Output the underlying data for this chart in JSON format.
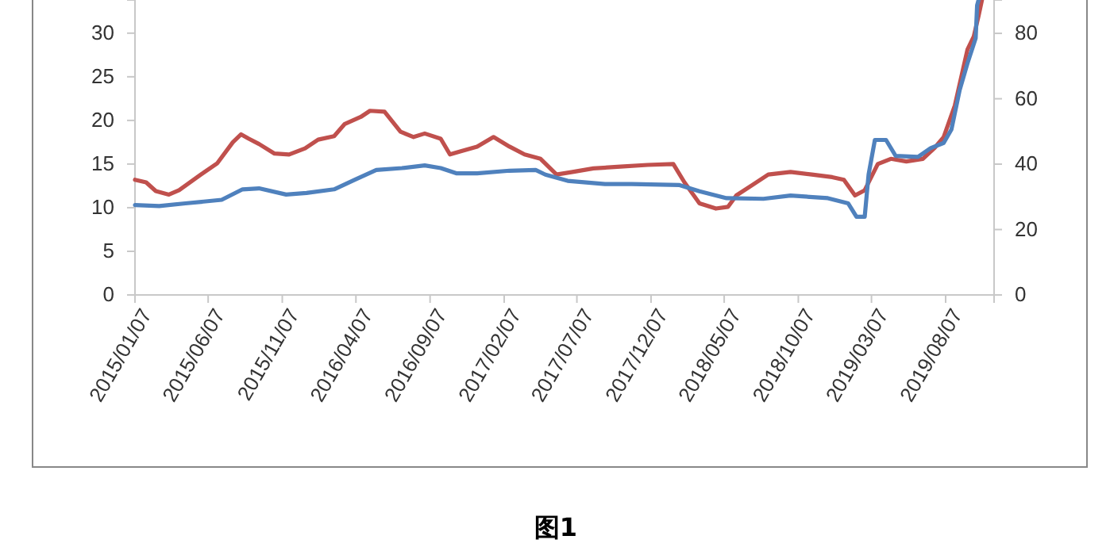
{
  "chart_data": {
    "type": "line",
    "title": "图1",
    "grid": false,
    "marker": "none",
    "line_style": "solid",
    "xlim": [
      "2015-01-07",
      "2019-11-15"
    ],
    "xticks": [
      {
        "value": "2015-01-07",
        "label": "2015/01/07"
      },
      {
        "value": "2015-06-07",
        "label": "2015/06/07"
      },
      {
        "value": "2015-11-07",
        "label": "2015/11/07"
      },
      {
        "value": "2016-04-07",
        "label": "2016/04/07"
      },
      {
        "value": "2016-09-07",
        "label": "2016/09/07"
      },
      {
        "value": "2017-02-07",
        "label": "2017/02/07"
      },
      {
        "value": "2017-07-07",
        "label": "2017/07/07"
      },
      {
        "value": "2017-12-07",
        "label": "2017/12/07"
      },
      {
        "value": "2018-05-07",
        "label": "2018/05/07"
      },
      {
        "value": "2018-10-07",
        "label": "2018/10/07"
      },
      {
        "value": "2019-03-07",
        "label": "2019/03/07"
      },
      {
        "value": "2019-08-07",
        "label": "2019/08/07"
      }
    ],
    "ylim": [
      0,
      33.8
    ],
    "yticks": [
      0,
      5,
      10,
      15,
      20,
      25,
      30
    ],
    "y2lim": [
      0,
      90.2
    ],
    "y2ticks": [
      0,
      20,
      40,
      60,
      80
    ],
    "series": [
      {
        "color": "#c0504d",
        "x": [
          "2015-01-07",
          "2015-01-30",
          "2015-02-19",
          "2015-03-18",
          "2015-04-08",
          "2015-05-23",
          "2015-06-26",
          "2015-07-28",
          "2015-08-14",
          "2015-08-30",
          "2015-09-20",
          "2015-10-22",
          "2015-11-21",
          "2015-12-24",
          "2016-01-20",
          "2016-02-22",
          "2016-03-15",
          "2016-04-17",
          "2016-05-06",
          "2016-06-05",
          "2016-07-08",
          "2016-08-04",
          "2016-08-27",
          "2016-09-29",
          "2016-10-18",
          "2016-11-11",
          "2016-12-13",
          "2017-01-16",
          "2017-02-18",
          "2017-03-21",
          "2017-04-23",
          "2017-05-26",
          "2017-06-28",
          "2017-08-10",
          "2017-10-05",
          "2017-11-30",
          "2018-01-22",
          "2018-02-14",
          "2018-03-17",
          "2018-04-20",
          "2018-05-15",
          "2018-06-01",
          "2018-07-04",
          "2018-08-06",
          "2018-09-21",
          "2018-11-04",
          "2018-12-16",
          "2019-01-09",
          "2019-02-01",
          "2019-02-21",
          "2019-03-20",
          "2019-04-16",
          "2019-05-18",
          "2019-06-21",
          "2019-07-16",
          "2019-08-03",
          "2019-08-26",
          "2019-09-12",
          "2019-09-21",
          "2019-10-04",
          "2019-10-14",
          "2019-10-21"
        ],
        "values": [
          13.2,
          12.9,
          11.9,
          11.5,
          12,
          13.8,
          15.1,
          17.5,
          18.4,
          17.9,
          17.3,
          16.2,
          16.1,
          16.8,
          17.8,
          18.2,
          19.6,
          20.4,
          21.1,
          21,
          18.7,
          18.1,
          18.5,
          17.9,
          16.1,
          16.5,
          17,
          18.1,
          17,
          16.1,
          15.6,
          13.8,
          14.1,
          14.5,
          14.7,
          14.9,
          15,
          12.9,
          10.5,
          9.9,
          10.1,
          11.4,
          12.6,
          13.8,
          14.1,
          13.8,
          13.5,
          13.2,
          11.4,
          12,
          15,
          15.6,
          15.3,
          15.6,
          16.9,
          18.1,
          21.7,
          25.9,
          28.1,
          29.6,
          32,
          33.8
        ]
      },
      {
        "color": "#4f81bd",
        "axis": "y2",
        "x": [
          "2015-01-07",
          "2015-02-26",
          "2015-04-21",
          "2015-07-05",
          "2015-08-17",
          "2015-09-20",
          "2015-11-15",
          "2015-12-27",
          "2016-02-22",
          "2016-04-04",
          "2016-05-19",
          "2016-07-11",
          "2016-08-27",
          "2016-09-29",
          "2016-10-31",
          "2016-12-13",
          "2017-02-18",
          "2017-04-13",
          "2017-05-03",
          "2017-06-18",
          "2017-09-03",
          "2017-10-28",
          "2018-02-04",
          "2018-03-17",
          "2018-05-12",
          "2018-07-27",
          "2018-09-21",
          "2018-12-07",
          "2019-01-18",
          "2019-02-04",
          "2019-02-21",
          "2019-03-01",
          "2019-03-14",
          "2019-04-06",
          "2019-04-26",
          "2019-06-11",
          "2019-07-07",
          "2019-08-03",
          "2019-08-19",
          "2019-09-05",
          "2019-09-21",
          "2019-10-08",
          "2019-10-11",
          "2019-10-14"
        ],
        "values": [
          27.5,
          27.2,
          28,
          29.1,
          32.3,
          32.6,
          30.7,
          31.2,
          32.3,
          35.2,
          38.2,
          38.8,
          39.6,
          38.8,
          37.2,
          37.2,
          38,
          38.2,
          36.8,
          34.9,
          33.9,
          33.9,
          33.6,
          31.7,
          29.6,
          29.4,
          30.4,
          29.6,
          28,
          23.9,
          23.9,
          36.8,
          47.4,
          47.4,
          42.5,
          42.2,
          44.9,
          46.5,
          50.6,
          62.7,
          70.8,
          78.5,
          88.6,
          90.2
        ]
      }
    ]
  }
}
